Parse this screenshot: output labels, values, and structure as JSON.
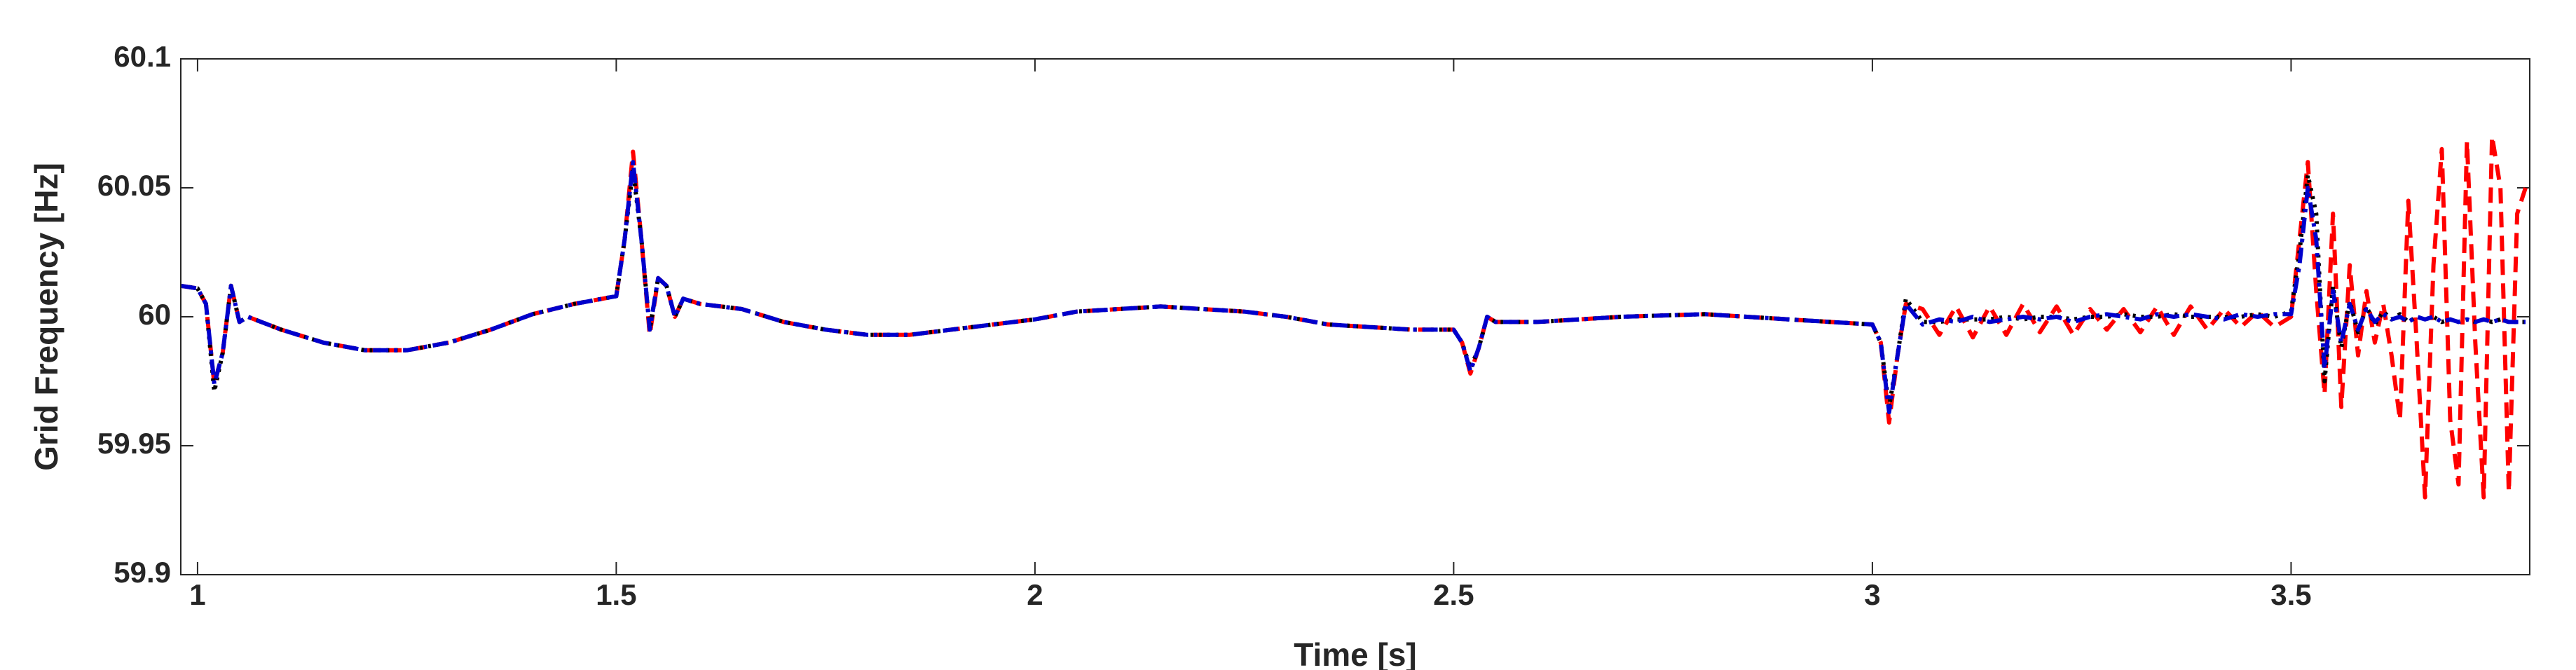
{
  "chart_data": {
    "type": "line",
    "xlabel": "Time [s]",
    "ylabel": "Grid Frequency [Hz]",
    "xlim": [
      0.98,
      3.785
    ],
    "xticks": [
      1,
      1.5,
      2,
      2.5,
      3,
      3.5
    ],
    "ylim": [
      59.9,
      60.1
    ],
    "yticks": [
      59.9,
      59.95,
      60,
      60.05,
      60.1
    ],
    "x": [
      0.98,
      1,
      1.01,
      1.02,
      1.03,
      1.04,
      1.05,
      1.06,
      1.1,
      1.15,
      1.2,
      1.25,
      1.3,
      1.35,
      1.4,
      1.45,
      1.5,
      1.51,
      1.52,
      1.53,
      1.54,
      1.55,
      1.56,
      1.57,
      1.58,
      1.6,
      1.65,
      1.7,
      1.75,
      1.8,
      1.85,
      1.9,
      1.95,
      2,
      2.05,
      2.1,
      2.15,
      2.2,
      2.25,
      2.3,
      2.35,
      2.4,
      2.45,
      2.5,
      2.51,
      2.52,
      2.53,
      2.54,
      2.55,
      2.6,
      2.7,
      2.8,
      2.9,
      2.95,
      3,
      3.01,
      3.02,
      3.03,
      3.04,
      3.06,
      3.08,
      3.1,
      3.12,
      3.14,
      3.16,
      3.18,
      3.2,
      3.22,
      3.24,
      3.26,
      3.28,
      3.3,
      3.32,
      3.34,
      3.36,
      3.38,
      3.4,
      3.42,
      3.44,
      3.46,
      3.48,
      3.5,
      3.51,
      3.52,
      3.53,
      3.54,
      3.55,
      3.56,
      3.57,
      3.58,
      3.59,
      3.6,
      3.61,
      3.62,
      3.63,
      3.64,
      3.65,
      3.66,
      3.67,
      3.68,
      3.69,
      3.7,
      3.71,
      3.72,
      3.73,
      3.74,
      3.75,
      3.76,
      3.77,
      3.78
    ],
    "series": [
      {
        "color": "#ff0000",
        "dash": "dashed",
        "values": [
          60.012,
          60.011,
          60.005,
          59.974,
          59.986,
          60.012,
          59.998,
          60,
          59.995,
          59.99,
          59.987,
          59.987,
          59.99,
          59.995,
          60.001,
          60.005,
          60.008,
          60.03,
          60.064,
          60.03,
          59.993,
          60.015,
          60.012,
          60,
          60.007,
          60.005,
          60.003,
          59.998,
          59.995,
          59.993,
          59.993,
          59.995,
          59.997,
          59.999,
          60.002,
          60.003,
          60.004,
          60.003,
          60.002,
          60,
          59.997,
          59.996,
          59.995,
          59.995,
          59.99,
          59.978,
          59.988,
          60,
          59.998,
          59.998,
          60,
          60.001,
          59.999,
          59.998,
          59.997,
          59.99,
          59.959,
          59.985,
          60.005,
          60.003,
          59.993,
          60.004,
          59.992,
          60.004,
          59.993,
          60.005,
          59.994,
          60.004,
          59.993,
          60.003,
          59.995,
          60.003,
          59.994,
          60.004,
          59.993,
          60.004,
          59.995,
          60.003,
          59.996,
          60.002,
          59.996,
          60,
          60.03,
          60.06,
          60.01,
          59.97,
          60.04,
          59.965,
          60.02,
          59.985,
          60.01,
          59.99,
          60.005,
          59.985,
          59.96,
          60.045,
          59.99,
          59.93,
          60.02,
          60.065,
          59.96,
          59.935,
          60.068,
          59.99,
          59.93,
          60.07,
          60.05,
          59.932,
          60.04,
          60.05
        ]
      },
      {
        "color": "#000000",
        "dash": "dotted",
        "values": [
          60.012,
          60.011,
          60.005,
          59.971,
          59.986,
          60.012,
          59.998,
          60,
          59.995,
          59.99,
          59.987,
          59.987,
          59.99,
          59.995,
          60.001,
          60.005,
          60.008,
          60.03,
          60.057,
          60.03,
          59.995,
          60.015,
          60.012,
          60,
          60.007,
          60.005,
          60.003,
          59.998,
          59.995,
          59.993,
          59.993,
          59.995,
          59.997,
          59.999,
          60.002,
          60.003,
          60.004,
          60.003,
          60.002,
          60,
          59.997,
          59.996,
          59.995,
          59.995,
          59.99,
          59.98,
          59.988,
          60,
          59.998,
          59.998,
          60,
          60.001,
          59.999,
          59.998,
          59.997,
          59.99,
          59.965,
          59.985,
          60.007,
          59.998,
          59.998,
          59.999,
          59.999,
          59.999,
          60,
          59.999,
          60,
          60,
          59.999,
          60,
          60,
          60.001,
          60,
          60,
          60.001,
          60,
          60,
          60,
          60,
          60.001,
          60,
          60.002,
          60.025,
          60.055,
          60.04,
          59.975,
          60.012,
          59.988,
          60.006,
          59.994,
          60.004,
          59.997,
          60.002,
          59.999,
          60.001,
          59.998,
          60,
          59.999,
          60,
          59.998,
          59.999,
          59.998,
          59.999,
          59.998,
          59.999,
          59.998,
          59.999,
          59.998,
          59.998,
          59.998
        ]
      },
      {
        "color": "#0000cc",
        "dash": "dashdot",
        "values": [
          60.012,
          60.011,
          60.005,
          59.974,
          59.986,
          60.012,
          59.998,
          60,
          59.995,
          59.99,
          59.987,
          59.987,
          59.99,
          59.995,
          60.001,
          60.005,
          60.008,
          60.03,
          60.06,
          60.03,
          59.995,
          60.015,
          60.012,
          60,
          60.007,
          60.005,
          60.003,
          59.998,
          59.995,
          59.993,
          59.993,
          59.995,
          59.997,
          59.999,
          60.002,
          60.003,
          60.004,
          60.003,
          60.002,
          60,
          59.997,
          59.996,
          59.995,
          59.995,
          59.99,
          59.979,
          59.988,
          60,
          59.998,
          59.998,
          60,
          60.001,
          59.999,
          59.998,
          59.997,
          59.99,
          59.963,
          59.985,
          60.005,
          59.997,
          59.999,
          59.998,
          60,
          59.998,
          59.999,
          60,
          59.999,
          60,
          59.998,
          60,
          60.001,
          60,
          59.999,
          60.001,
          60,
          60.001,
          60,
          59.999,
          60.001,
          60,
          60.001,
          60.001,
          60.02,
          60.05,
          60.03,
          59.98,
          60.01,
          59.99,
          60.005,
          59.995,
          60.003,
          59.998,
          60.001,
          59.999,
          60,
          59.998,
          60,
          59.999,
          60,
          59.998,
          59.999,
          59.998,
          59.999,
          59.998,
          59.999,
          59.998,
          59.999,
          59.998,
          59.998,
          59.998
        ]
      }
    ]
  }
}
